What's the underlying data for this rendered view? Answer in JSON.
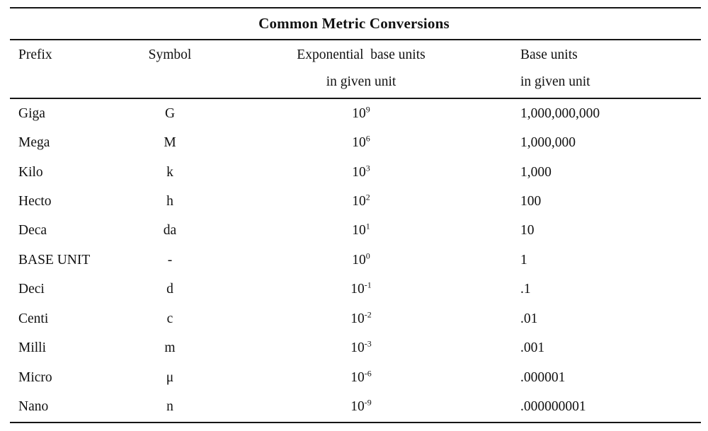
{
  "title": "Common Metric Conversions",
  "header": {
    "prefix": "Prefix",
    "symbol": "Symbol",
    "exponential_line1": "Exponential  base units",
    "exponential_line2": "in given unit",
    "base_line1": "Base units",
    "base_line2": "in given unit"
  },
  "rows": [
    {
      "prefix": "Giga",
      "symbol": "G",
      "exponential": "10^9",
      "base_units": "1,000,000,000"
    },
    {
      "prefix": "Mega",
      "symbol": "M",
      "exponential": "10^6",
      "base_units": "1,000,000"
    },
    {
      "prefix": "Kilo",
      "symbol": "k",
      "exponential": "10^3",
      "base_units": "1,000"
    },
    {
      "prefix": "Hecto",
      "symbol": "h",
      "exponential": "10^2",
      "base_units": "100"
    },
    {
      "prefix": "Deca",
      "symbol": "da",
      "exponential": "10^1",
      "base_units": "10"
    },
    {
      "prefix": "BASE UNIT",
      "symbol": "-",
      "exponential": "10^0",
      "base_units": "1"
    },
    {
      "prefix": "Deci",
      "symbol": "d",
      "exponential": "10^-1",
      "base_units": ".1"
    },
    {
      "prefix": "Centi",
      "symbol": "c",
      "exponential": "10^-2",
      "base_units": ".01"
    },
    {
      "prefix": "Milli",
      "symbol": "m",
      "exponential": "10^-3",
      "base_units": ".001"
    },
    {
      "prefix": "Micro",
      "symbol": "μ",
      "exponential": "10^-6",
      "base_units": ".000001"
    },
    {
      "prefix": "Nano",
      "symbol": "n",
      "exponential": "10^-9",
      "base_units": ".000000001"
    }
  ],
  "colors": {
    "text": "#111111",
    "rule": "#161616",
    "background": "#ffffff"
  }
}
